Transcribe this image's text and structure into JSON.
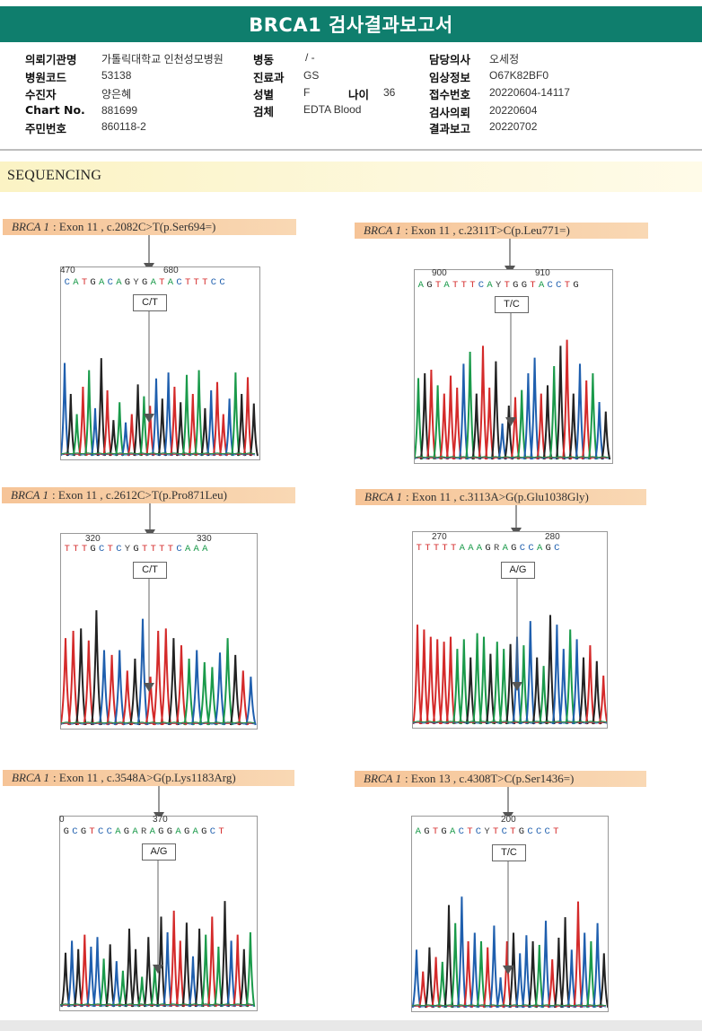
{
  "header": {
    "title": "BRCA1 검사결과보고서",
    "bg_color": "#0f7e6d"
  },
  "info": {
    "left": [
      {
        "label": "의뢰기관명",
        "value": "가톨릭대학교 인천성모병원"
      },
      {
        "label": "병원코드",
        "value": "53138"
      },
      {
        "label": "수진자",
        "value": "양은혜"
      },
      {
        "label": "Chart No.",
        "value": "881699"
      },
      {
        "label": "주민번호",
        "value": "860118-2"
      }
    ],
    "middle": [
      {
        "label": "병동",
        "value": "/ -"
      },
      {
        "label": "진료과",
        "value": "GS"
      },
      {
        "label": "성별",
        "value": "F"
      },
      {
        "label": "검체",
        "value": "EDTA Blood"
      }
    ],
    "age": {
      "label": "나이",
      "value": "36"
    },
    "right": [
      {
        "label": "담당의사",
        "value": "오세정"
      },
      {
        "label": "임상정보",
        "value": "O67K82BF0"
      },
      {
        "label": "접수번호",
        "value": "20220604-14117"
      },
      {
        "label": "검사의뢰",
        "value": "20220604"
      },
      {
        "label": "결과보고",
        "value": "20220702"
      }
    ]
  },
  "section": {
    "title": "SEQUENCING"
  },
  "colors": {
    "A": "#1a9a4a",
    "C": "#1f5fae",
    "G": "#222222",
    "T": "#d42a2a"
  },
  "panels": [
    {
      "gene": "BRCA 1",
      "label": ": Exon 11 , c.2082C>T(p.Ser694=)",
      "positions": [
        "470",
        "680"
      ],
      "sequence": "CATGACAGYGATACTTTCC",
      "call": "C/T",
      "peaks": "CGATACGTGACTGATCGCTGATAGCTTCAGTGC",
      "heights": [
        0.78,
        0.52,
        0.35,
        0.58,
        0.72,
        0.4,
        0.82,
        0.55,
        0.3,
        0.45,
        0.28,
        0.35,
        0.6,
        0.5,
        0.42,
        0.65,
        0.48,
        0.7,
        0.58,
        0.45,
        0.68,
        0.52,
        0.72,
        0.4,
        0.55,
        0.62,
        0.35,
        0.48,
        0.7,
        0.52,
        0.66,
        0.44,
        0.6
      ]
    },
    {
      "gene": "BRCA 1",
      "label": ": Exon 11 , c.2311T>C(p.Leu771=)",
      "positions": [
        "900",
        "910"
      ],
      "sequence": "AGTATTTCAYTGGTACCTG",
      "call": "T/C",
      "peaks": "AGTATTTCAGTTGCGTACCTGAGTGCTACG",
      "heights": [
        0.68,
        0.72,
        0.75,
        0.62,
        0.55,
        0.7,
        0.6,
        0.8,
        0.9,
        0.55,
        0.95,
        0.6,
        0.82,
        0.3,
        0.45,
        0.52,
        0.58,
        0.72,
        0.85,
        0.55,
        0.62,
        0.78,
        0.95,
        1.0,
        0.55,
        0.8,
        0.66,
        0.72,
        0.48,
        0.4
      ]
    },
    {
      "gene": "BRCA 1",
      "label": ": Exon 11 , c.2612C>T(p.Pro871Leu)",
      "positions": [
        "320",
        "330"
      ],
      "sequence": "TTTGCTCYGTTTTCAAA",
      "call": "C/T",
      "peaks": "TTGTGCTCTGCTTTGTACAACAGTC",
      "heights": [
        0.72,
        0.78,
        0.8,
        0.7,
        0.95,
        0.62,
        0.58,
        0.62,
        0.45,
        0.55,
        0.88,
        0.4,
        0.78,
        0.8,
        0.72,
        0.66,
        0.55,
        0.62,
        0.52,
        0.48,
        0.6,
        0.72,
        0.58,
        0.45,
        0.4
      ]
    },
    {
      "gene": "BRCA 1",
      "label": ": Exon 11 , c.3113A>G(p.Glu1038Gly)",
      "positions": [
        "270",
        "280"
      ],
      "sequence": "TTTTTAAAGRAGCCAGC",
      "call": "A/G",
      "peaks": "TTTTTTAAGAAGAAGCACGAGCCACGTGT",
      "heights": [
        0.82,
        0.78,
        0.72,
        0.7,
        0.68,
        0.72,
        0.62,
        0.7,
        0.55,
        0.75,
        0.72,
        0.58,
        0.68,
        0.62,
        0.66,
        0.72,
        0.65,
        0.85,
        0.55,
        0.48,
        0.9,
        0.82,
        0.62,
        0.78,
        0.7,
        0.55,
        0.65,
        0.52,
        0.4
      ]
    },
    {
      "gene": "BRCA 1",
      "label": ": Exon 11 , c.3548A>G(p.Lys1183Arg)",
      "positions": [
        "0",
        "370"
      ],
      "sequence": "GCGTCCAGARAGGAGAGCT",
      "call": "A/G",
      "peaks": "GCGTCCAGCAGGAGAGCTTGCGATAGCTGA",
      "heights": [
        0.45,
        0.55,
        0.48,
        0.6,
        0.5,
        0.58,
        0.4,
        0.52,
        0.38,
        0.3,
        0.65,
        0.48,
        0.25,
        0.58,
        0.35,
        0.75,
        0.62,
        0.8,
        0.55,
        0.7,
        0.42,
        0.65,
        0.6,
        0.75,
        0.5,
        0.88,
        0.55,
        0.6,
        0.48,
        0.62
      ]
    },
    {
      "gene": "BRCA 1",
      "label": ": Exon 13 , c.4308T>C(p.Ser1436=)",
      "positions": [
        "200"
      ],
      "sequence": "AGTGACTCYTCTGCCCT",
      "call": "T/C",
      "peaks": "CTGTAGACTCATCCTGCCGACTGGCTCACG",
      "heights": [
        0.48,
        0.3,
        0.5,
        0.42,
        0.38,
        0.85,
        0.7,
        0.92,
        0.55,
        0.62,
        0.55,
        0.5,
        0.68,
        0.25,
        0.55,
        0.62,
        0.45,
        0.6,
        0.55,
        0.52,
        0.72,
        0.4,
        0.58,
        0.75,
        0.48,
        0.88,
        0.62,
        0.55,
        0.7,
        0.45
      ]
    }
  ]
}
